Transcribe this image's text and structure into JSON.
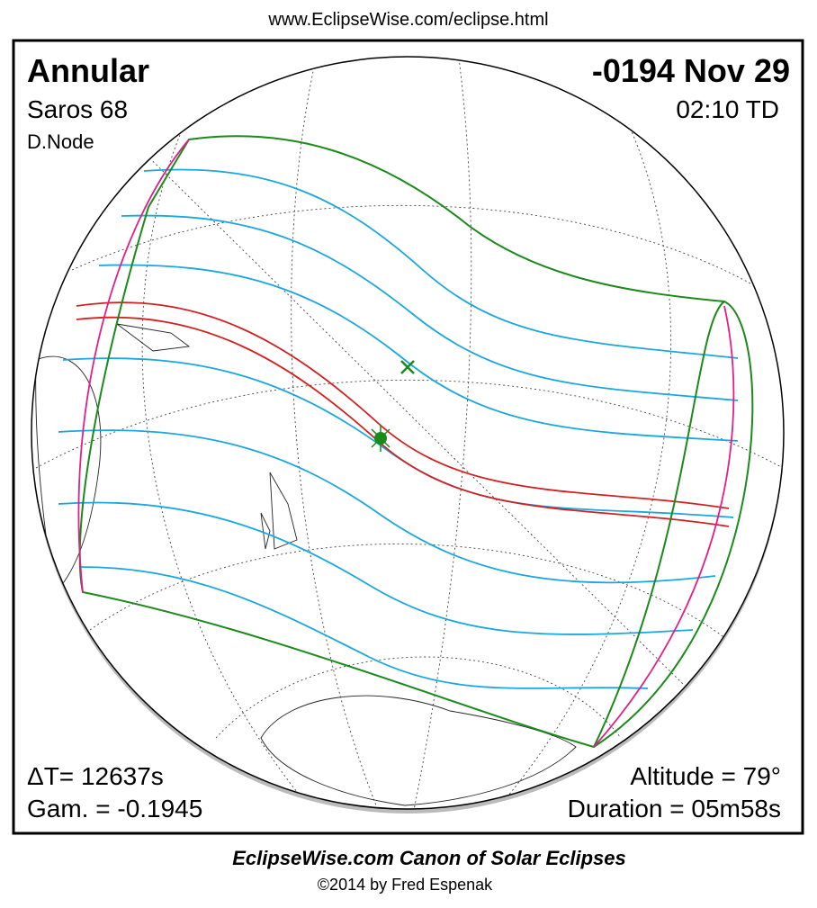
{
  "header": {
    "url": "www.EclipseWise.com/eclipse.html"
  },
  "panel": {
    "eclipse_type": "Annular",
    "date": "-0194 Nov 29",
    "saros": "Saros  68",
    "time": "02:10 TD",
    "node": "D.Node",
    "delta_t": "ΔT=  12637s",
    "gamma": "Gam. = -0.1945",
    "altitude": "Altitude = 79°",
    "duration": "Duration = 05m58s"
  },
  "footer": {
    "title": "EclipseWise.com Canon of Solar Eclipses",
    "credit": "©2014 by Fred Espenak"
  }
}
